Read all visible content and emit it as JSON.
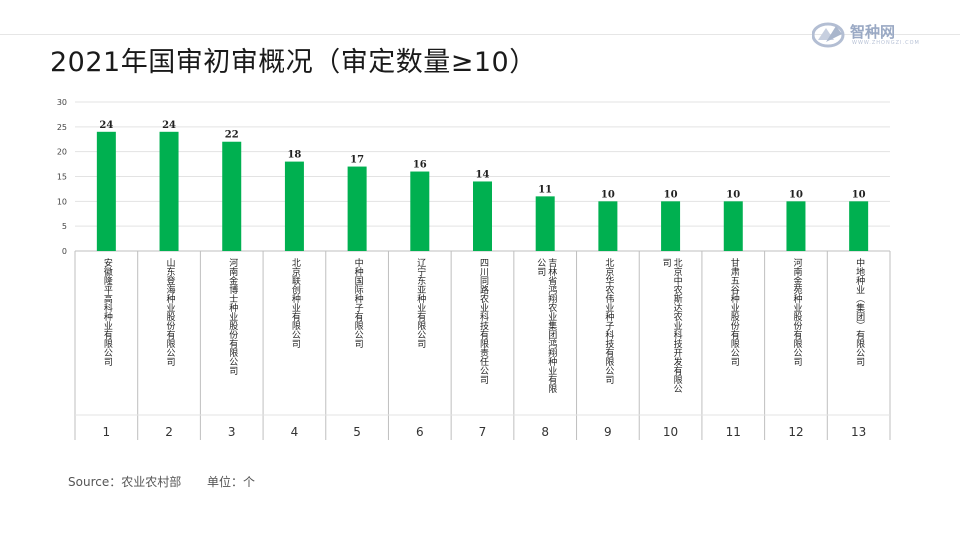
{
  "title": "2021年国审初审概况（审定数量≥10）",
  "logo": {
    "name": "智种网",
    "tagline": "WWW.ZHONGZI.COM"
  },
  "footer": {
    "source": "Source：农业农村部",
    "unit": "单位：个"
  },
  "colors": {
    "bar": "#00b050",
    "grid": "#e3e3e3",
    "axis": "#bfbfbf",
    "text": "#333333"
  },
  "chart_data": {
    "type": "bar",
    "title": "2021年国审初审概况（审定数量≥10）",
    "xlabel": "",
    "ylabel": "",
    "ylim": [
      0,
      30
    ],
    "yticks": [
      0,
      5,
      10,
      15,
      20,
      25,
      30
    ],
    "grid": true,
    "legend": "none",
    "index_labels": [
      "1",
      "2",
      "3",
      "4",
      "5",
      "6",
      "7",
      "8",
      "9",
      "10",
      "11",
      "12",
      "13"
    ],
    "categories": [
      "安徽隆平高科种业有限公司",
      "山东登海种业股份有限公司",
      "河南金博士种业股份有限公司",
      "北京联创种业有限公司",
      "中种国际种子有限公司",
      "辽宁东亚种业有限公司",
      "四川同路农业科技有限责任公司",
      "吉林省鸿翔农业集团鸿翔种业有限公司",
      "北京华农伟业种子科技有限公司",
      "北京中农斯达农业科技开发有限公司",
      "甘肃五谷种业股份有限公司",
      "河南金苑种业股份有限公司",
      "中地种业（集团）有限公司"
    ],
    "values": [
      24,
      24,
      22,
      18,
      17,
      16,
      14,
      11,
      10,
      10,
      10,
      10,
      10
    ],
    "data_labels": [
      "24",
      "24",
      "22",
      "18",
      "17",
      "16",
      "14",
      "11",
      "10",
      "10",
      "10",
      "10",
      "10"
    ]
  }
}
